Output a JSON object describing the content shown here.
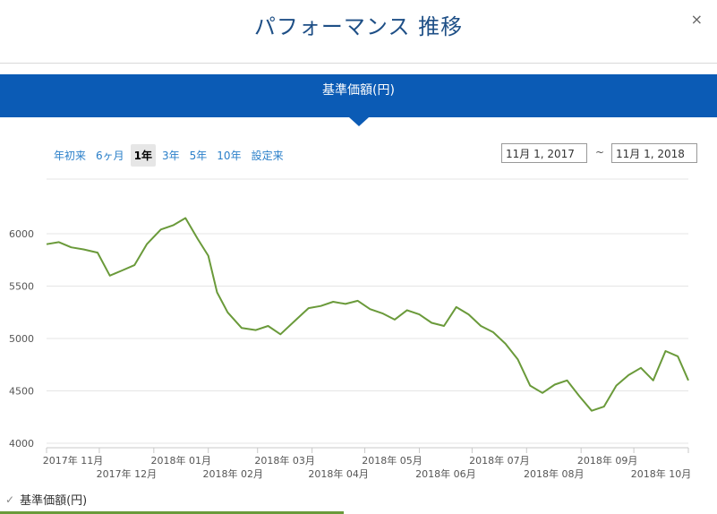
{
  "modal": {
    "title": "パフォーマンス 推移",
    "close_icon": "×",
    "header_band_title": "基準価額(円)"
  },
  "range_buttons": [
    "年初来",
    "6ヶ月",
    "1年",
    "3年",
    "5年",
    "10年",
    "設定来"
  ],
  "range_selected": "1年",
  "date_range": {
    "from": "11月 1, 2017",
    "separator": "~",
    "to": "11月 1, 2018"
  },
  "legend": {
    "label": "基準価額(円)",
    "check_icon": "✓",
    "color": "#6a9a3a"
  },
  "chart_data": {
    "type": "line",
    "title": "",
    "xlabel": "",
    "ylabel": "",
    "ylim": [
      4000,
      6000
    ],
    "yticks": [
      4000,
      4500,
      5000,
      5500,
      6000
    ],
    "x_tick_labels": [
      "2017年 11月",
      "2017年 12月",
      "2018年 01月",
      "2018年 02月",
      "2018年 03月",
      "2018年 04月",
      "2018年 05月",
      "2018年 06月",
      "2018年 07月",
      "2018年 08月",
      "2018年 09月",
      "2018年 10月"
    ],
    "grid": "horizontal",
    "line_color": "#6a9a3a",
    "series": [
      {
        "name": "基準価額(円)",
        "x": [
          "2017-11-01",
          "2017-11-08",
          "2017-11-15",
          "2017-11-22",
          "2017-11-30",
          "2017-12-07",
          "2017-12-14",
          "2017-12-21",
          "2017-12-28",
          "2018-01-05",
          "2018-01-12",
          "2018-01-19",
          "2018-01-26",
          "2018-02-01",
          "2018-02-06",
          "2018-02-12",
          "2018-02-20",
          "2018-02-28",
          "2018-03-07",
          "2018-03-14",
          "2018-03-23",
          "2018-03-30",
          "2018-04-06",
          "2018-04-13",
          "2018-04-20",
          "2018-04-27",
          "2018-05-04",
          "2018-05-11",
          "2018-05-18",
          "2018-05-25",
          "2018-06-01",
          "2018-06-08",
          "2018-06-15",
          "2018-06-22",
          "2018-06-29",
          "2018-07-06",
          "2018-07-13",
          "2018-07-20",
          "2018-07-27",
          "2018-08-03",
          "2018-08-10",
          "2018-08-17",
          "2018-08-24",
          "2018-08-31",
          "2018-09-07",
          "2018-09-14",
          "2018-09-21",
          "2018-09-28",
          "2018-10-05",
          "2018-10-12",
          "2018-10-19",
          "2018-10-26",
          "2018-11-01"
        ],
        "values": [
          5900,
          5920,
          5870,
          5850,
          5820,
          5600,
          5650,
          5700,
          5900,
          6040,
          6080,
          6150,
          5950,
          5790,
          5440,
          5250,
          5100,
          5080,
          5120,
          5040,
          5180,
          5290,
          5310,
          5350,
          5330,
          5360,
          5280,
          5240,
          5180,
          5270,
          5230,
          5150,
          5120,
          5300,
          5230,
          5120,
          5060,
          4950,
          4800,
          4550,
          4480,
          4560,
          4600,
          4450,
          4310,
          4350,
          4550,
          4650,
          4720,
          4600,
          4880,
          4830,
          4600
        ]
      }
    ]
  }
}
